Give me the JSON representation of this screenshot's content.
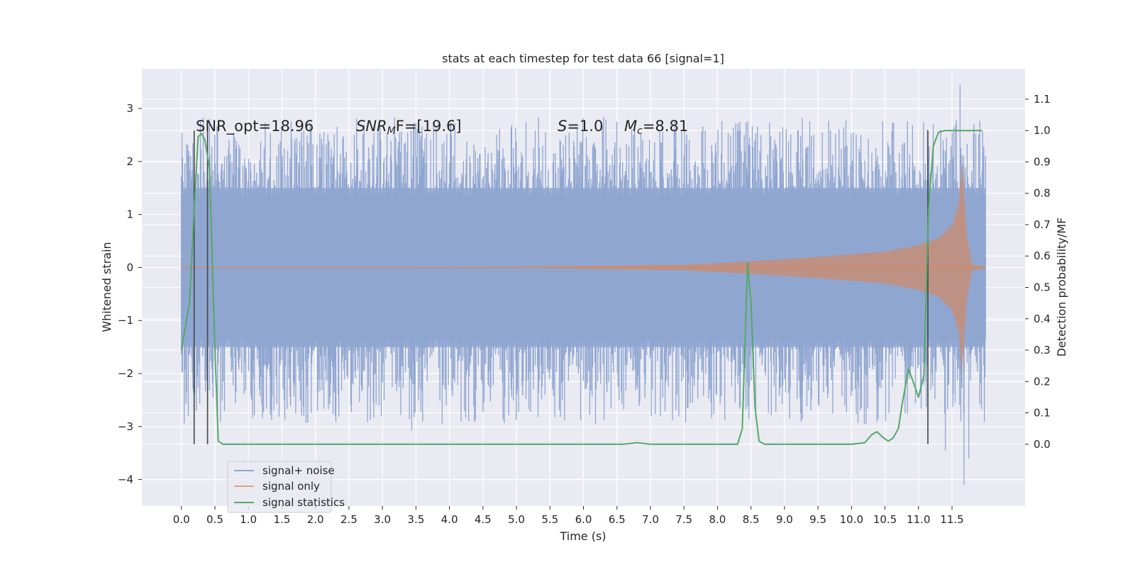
{
  "chart_data": {
    "type": "line",
    "title": "stats at each timestep for test data 66 [signal=1]",
    "xlabel": "Time (s)",
    "ylabel": "Whitened strain",
    "y2label": "Detection probability/MF",
    "xlim": [
      -0.59,
      12.59
    ],
    "ylim": [
      -4.5,
      3.75
    ],
    "y2lim": [
      -0.197,
      1.197
    ],
    "x_ticks": [
      "0.0",
      "0.5",
      "1.0",
      "1.5",
      "2.0",
      "2.5",
      "3.0",
      "3.5",
      "4.0",
      "4.5",
      "5.0",
      "5.5",
      "6.0",
      "6.5",
      "7.0",
      "7.5",
      "8.0",
      "8.5",
      "9.0",
      "9.5",
      "10.0",
      "10.5",
      "11.0",
      "11.5"
    ],
    "y_ticks": [
      "3",
      "2",
      "1",
      "0",
      "−1",
      "−2",
      "−3",
      "−4"
    ],
    "y2_ticks": [
      "1.1",
      "1.0",
      "0.9",
      "0.8",
      "0.7",
      "0.6",
      "0.5",
      "0.4",
      "0.3",
      "0.2",
      "0.1",
      "0.0"
    ],
    "grid": true,
    "legend_position": "lower-left",
    "annotations": [
      {
        "pre": "SNR_opt=18.96",
        "sym": "",
        "sub": "",
        "post": ""
      },
      {
        "pre": "",
        "sym": "SNR",
        "sub": "M",
        "post": "F=[19.6]"
      },
      {
        "pre": "",
        "sym": "S",
        "sub": "",
        "post": "=1.0"
      },
      {
        "pre": "",
        "sym": "M",
        "sub": "c",
        "post": "=8.81"
      }
    ],
    "vertical_markers_s": [
      0.19,
      0.39,
      11.14
    ],
    "series": [
      {
        "name": "signal+ noise",
        "color": "#8fa6d1",
        "kind": "noise_band",
        "duration_s": 12.0,
        "typical_range": [
          -1.5,
          1.5
        ],
        "extreme_range": [
          -4.1,
          3.45
        ]
      },
      {
        "name": "signal only",
        "color": "#dd8452",
        "kind": "chirp_envelope",
        "envelope": {
          "x": [
            0.0,
            5.0,
            7.5,
            8.5,
            9.5,
            10.5,
            11.0,
            11.3,
            11.5,
            11.6,
            11.65,
            11.72,
            11.8,
            12.0
          ],
          "y": [
            0.0,
            0.01,
            0.05,
            0.12,
            0.2,
            0.3,
            0.42,
            0.55,
            0.8,
            1.2,
            2.0,
            0.6,
            0.05,
            0.02
          ]
        }
      },
      {
        "name": "signal statistics",
        "color": "#55a868",
        "axis": "right",
        "x": [
          0.0,
          0.12,
          0.19,
          0.25,
          0.3,
          0.35,
          0.42,
          0.5,
          0.55,
          0.62,
          0.7,
          1.0,
          2.0,
          3.0,
          4.0,
          5.0,
          6.0,
          6.6,
          6.8,
          7.0,
          7.5,
          8.0,
          8.3,
          8.37,
          8.45,
          8.5,
          8.56,
          8.62,
          8.7,
          9.0,
          9.5,
          10.0,
          10.2,
          10.3,
          10.38,
          10.48,
          10.55,
          10.62,
          10.7,
          10.75,
          10.85,
          10.92,
          11.0,
          11.08,
          11.15,
          11.22,
          11.3,
          11.4,
          11.6,
          11.8,
          11.95
        ],
        "y": [
          0.3,
          0.45,
          0.75,
          0.98,
          0.99,
          0.97,
          0.88,
          0.3,
          0.01,
          0.0,
          0.0,
          0.0,
          0.0,
          0.0,
          0.0,
          0.0,
          0.0,
          0.0,
          0.005,
          0.0,
          0.0,
          0.0,
          0.0,
          0.05,
          0.58,
          0.45,
          0.12,
          0.01,
          0.0,
          0.0,
          0.0,
          0.0,
          0.005,
          0.03,
          0.04,
          0.02,
          0.01,
          0.02,
          0.05,
          0.12,
          0.24,
          0.2,
          0.15,
          0.22,
          0.75,
          0.95,
          0.995,
          1.0,
          1.0,
          1.0,
          1.0
        ]
      }
    ]
  }
}
